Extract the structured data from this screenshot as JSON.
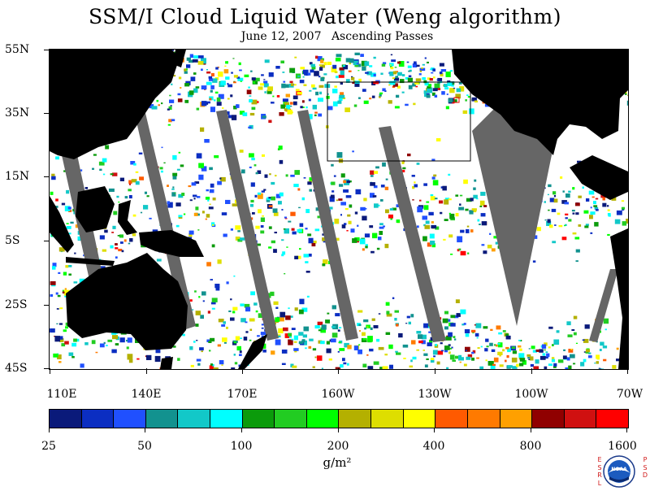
{
  "title": "SSM/I Cloud Liquid Water (Weng algorithm)",
  "subtitle": {
    "date": "June 12, 2007",
    "passes": "Ascending Passes"
  },
  "map": {
    "lat_labels": [
      "55N",
      "35N",
      "15N",
      "5S",
      "25S",
      "45S"
    ],
    "lon_labels": [
      "110E",
      "140E",
      "170E",
      "160W",
      "130W",
      "100W",
      "70W"
    ],
    "land_color": "#000000",
    "missing_color": "#666666"
  },
  "colorbar": {
    "labels": [
      "25",
      "50",
      "100",
      "200",
      "400",
      "800",
      "1600"
    ],
    "units": "g/m²",
    "colors": [
      "#0a1a7a",
      "#0b2ec2",
      "#2050ff",
      "#12928f",
      "#12c8c8",
      "#00ffff",
      "#0b9b0b",
      "#22cc22",
      "#00ff00",
      "#b4b000",
      "#dede00",
      "#ffff00",
      "#ff5a00",
      "#ff7a00",
      "#ffa000",
      "#900000",
      "#d01010",
      "#ff0000"
    ]
  },
  "logo": {
    "name": "NOAA",
    "left_letters": [
      "E",
      "S",
      "R",
      "L"
    ],
    "right_letters": [
      "P",
      "S",
      "D"
    ]
  }
}
